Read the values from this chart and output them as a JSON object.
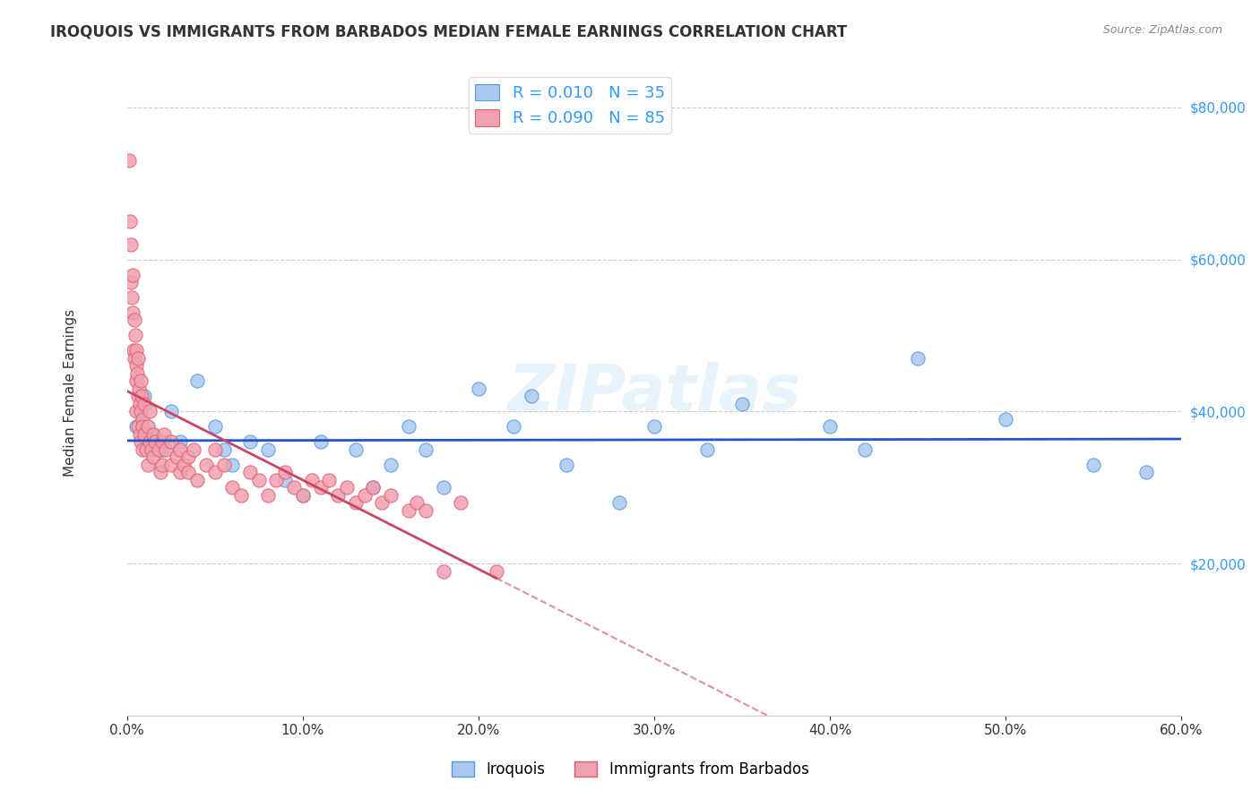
{
  "title": "IROQUOIS VS IMMIGRANTS FROM BARBADOS MEDIAN FEMALE EARNINGS CORRELATION CHART",
  "source": "Source: ZipAtlas.com",
  "xlabel_ticks": [
    "0.0%",
    "10.0%",
    "20.0%",
    "30.0%",
    "40.0%",
    "50.0%",
    "60.0%"
  ],
  "xlabel_vals": [
    0,
    10,
    20,
    30,
    40,
    50,
    60
  ],
  "ylabel_ticks": [
    "$20,000",
    "$40,000",
    "$60,000",
    "$80,000"
  ],
  "ylabel_vals": [
    20000,
    40000,
    60000,
    80000
  ],
  "ylabel_label": "Median Female Earnings",
  "xlim": [
    0,
    60
  ],
  "ylim": [
    0,
    85000
  ],
  "watermark": "ZIPatlas",
  "blue_color": "#a8c8f0",
  "pink_color": "#f0a0b0",
  "blue_edge": "#5599dd",
  "pink_edge": "#e06070",
  "trend_blue": "#2255cc",
  "trend_pink": "#cc4466",
  "legend_R_blue": "R = 0.010",
  "legend_N_blue": "N = 35",
  "legend_R_pink": "R = 0.090",
  "legend_N_pink": "N = 85",
  "blue_label": "Iroquois",
  "pink_label": "Immigrants from Barbados",
  "blue_scatter_x": [
    0.5,
    1.0,
    1.5,
    2.0,
    2.5,
    3.0,
    4.0,
    5.0,
    5.5,
    6.0,
    7.0,
    8.0,
    9.0,
    10.0,
    11.0,
    13.0,
    14.0,
    15.0,
    16.0,
    17.0,
    18.0,
    20.0,
    22.0,
    23.0,
    25.0,
    28.0,
    30.0,
    33.0,
    35.0,
    40.0,
    42.0,
    45.0,
    50.0,
    55.0,
    58.0
  ],
  "blue_scatter_y": [
    38000,
    42000,
    37000,
    35000,
    40000,
    36000,
    44000,
    38000,
    35000,
    33000,
    36000,
    35000,
    31000,
    29000,
    36000,
    35000,
    30000,
    33000,
    38000,
    35000,
    30000,
    43000,
    38000,
    42000,
    33000,
    28000,
    38000,
    35000,
    41000,
    38000,
    35000,
    47000,
    39000,
    33000,
    32000
  ],
  "pink_scatter_x": [
    0.1,
    0.15,
    0.2,
    0.2,
    0.25,
    0.3,
    0.3,
    0.35,
    0.4,
    0.4,
    0.45,
    0.5,
    0.5,
    0.5,
    0.5,
    0.55,
    0.6,
    0.6,
    0.6,
    0.65,
    0.7,
    0.7,
    0.75,
    0.8,
    0.8,
    0.85,
    0.9,
    0.9,
    0.9,
    1.0,
    1.0,
    1.1,
    1.2,
    1.2,
    1.3,
    1.3,
    1.4,
    1.5,
    1.5,
    1.6,
    1.8,
    1.9,
    2.0,
    2.0,
    2.1,
    2.2,
    2.5,
    2.5,
    2.8,
    3.0,
    3.0,
    3.2,
    3.5,
    3.5,
    3.8,
    4.0,
    4.5,
    5.0,
    5.0,
    5.5,
    6.0,
    6.5,
    7.0,
    7.5,
    8.0,
    8.5,
    9.0,
    9.5,
    10.0,
    10.5,
    11.0,
    11.5,
    12.0,
    12.5,
    13.0,
    13.5,
    14.0,
    14.5,
    15.0,
    16.0,
    16.5,
    17.0,
    18.0,
    19.0,
    21.0
  ],
  "pink_scatter_y": [
    73000,
    65000,
    57000,
    62000,
    55000,
    58000,
    53000,
    48000,
    47000,
    52000,
    50000,
    46000,
    48000,
    44000,
    40000,
    45000,
    42000,
    47000,
    38000,
    43000,
    41000,
    37000,
    44000,
    40000,
    36000,
    42000,
    39000,
    35000,
    38000,
    41000,
    37000,
    35000,
    38000,
    33000,
    36000,
    40000,
    35000,
    34000,
    37000,
    36000,
    35000,
    32000,
    36000,
    33000,
    37000,
    35000,
    33000,
    36000,
    34000,
    32000,
    35000,
    33000,
    34000,
    32000,
    35000,
    31000,
    33000,
    32000,
    35000,
    33000,
    30000,
    29000,
    32000,
    31000,
    29000,
    31000,
    32000,
    30000,
    29000,
    31000,
    30000,
    31000,
    29000,
    30000,
    28000,
    29000,
    30000,
    28000,
    29000,
    27000,
    28000,
    27000,
    19000,
    28000,
    19000
  ]
}
